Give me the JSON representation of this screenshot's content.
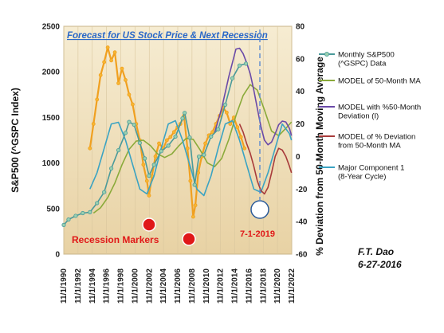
{
  "chart_data": {
    "type": "line",
    "title": "Forecast for US Stock Price & Next Recession",
    "ylabel": "S&P500 (^GSPC Index)",
    "y2label": "% Deviation from 50-Month Moving  Average",
    "ylim": [
      0,
      2500
    ],
    "y2lim": [
      -60,
      80
    ],
    "y_ticks": [
      "0",
      "500",
      "1000",
      "1500",
      "2000",
      "2500"
    ],
    "y2_ticks": [
      "-60",
      "-40",
      "-20",
      "0",
      "20",
      "40",
      "60",
      "80"
    ],
    "x_ticks": [
      "11/1/1990",
      "11/1/1992",
      "11/1/1994",
      "11/1/1996",
      "11/1/1998",
      "11/1/2000",
      "11/1/2002",
      "11/1/2004",
      "11/1/2006",
      "11/1/2008",
      "11/1/2010",
      "11/1/2012",
      "11/1/2014",
      "11/1/2016",
      "11/1/2018",
      "11/1/2020",
      "11/1/2022"
    ],
    "xlim": [
      1990.83,
      2022.83
    ],
    "legend_position": "right",
    "series": [
      {
        "name": "Monthly  S&P500 (^GSPC)  Data",
        "axis": "left",
        "color": "#4a9a9a",
        "x": [
          1990.83,
          1991.5,
          1992.5,
          1993.5,
          1994.5,
          1995.5,
          1996.5,
          1997.5,
          1998.5,
          1999.5,
          2000.0,
          2000.7,
          2001.5,
          2002.2,
          2002.8,
          2003.5,
          2004.5,
          2005.5,
          2006.5,
          2007.5,
          2007.8,
          2008.5,
          2009.2,
          2009.8,
          2010.5,
          2011.5,
          2012.5,
          2013.5,
          2014.5,
          2015.5,
          2016.4
        ],
        "y": [
          320,
          380,
          420,
          450,
          460,
          560,
          680,
          940,
          1140,
          1330,
          1450,
          1420,
          1220,
          1050,
          860,
          980,
          1130,
          1190,
          1290,
          1490,
          1550,
          1280,
          760,
          1070,
          1090,
          1290,
          1370,
          1640,
          1930,
          2070,
          2090
        ]
      },
      {
        "name": "MODEL of  50-Month MA",
        "axis": "left",
        "color": "#8aaa3a",
        "x": [
          1995.0,
          1996.0,
          1997.0,
          1998.0,
          1999.0,
          2000.0,
          2001.0,
          2002.0,
          2003.0,
          2004.0,
          2005.0,
          2006.0,
          2007.0,
          2008.0,
          2009.0,
          2010.0,
          2011.0,
          2012.0,
          2013.0,
          2014.0,
          2015.0,
          2016.0,
          2017.0,
          2018.0,
          2019.0,
          2020.0,
          2021.0,
          2022.0,
          2022.8
        ],
        "y": [
          450,
          510,
          620,
          780,
          980,
          1150,
          1240,
          1250,
          1190,
          1100,
          1060,
          1100,
          1190,
          1270,
          1260,
          1140,
          1000,
          960,
          1050,
          1260,
          1520,
          1740,
          1860,
          1800,
          1580,
          1350,
          1300,
          1380,
          1450
        ]
      },
      {
        "name": "MODEL with %50-Month Deviation (I)",
        "axis": "left",
        "color": "#6a4aa8",
        "x": [
          2012.0,
          2013.0,
          2014.0,
          2015.0,
          2015.5,
          2016.0,
          2016.5,
          2017.0,
          2017.5,
          2018.0,
          2018.5,
          2019.0,
          2019.5,
          2020.0,
          2020.5,
          2021.0,
          2021.5,
          2022.0,
          2022.5,
          2022.8
        ],
        "y": [
          1330,
          1600,
          1950,
          2250,
          2260,
          2200,
          2100,
          1980,
          1800,
          1600,
          1400,
          1250,
          1200,
          1230,
          1320,
          1420,
          1460,
          1450,
          1380,
          1300
        ]
      },
      {
        "name": "MODEL of  % Deviation from 50-Month MA",
        "axis": "right",
        "color": "#a83a3a",
        "x": [
          2015.5,
          2016.0,
          2016.5,
          2017.0,
          2017.5,
          2018.0,
          2018.5,
          2019.0,
          2019.5,
          2020.0,
          2020.5,
          2021.0,
          2021.5,
          2022.0,
          2022.5,
          2022.8
        ],
        "y": [
          20,
          15,
          8,
          2,
          -6,
          -15,
          -21,
          -23,
          -19,
          -10,
          0,
          5,
          4,
          0,
          -6,
          -10
        ]
      },
      {
        "name": "Major Component 1 (8-Year Cycle)",
        "axis": "right",
        "color": "#3aa3c3",
        "x": [
          1994.5,
          1995.5,
          1996.5,
          1997.5,
          1998.5,
          1999.5,
          2000.5,
          2001.5,
          2002.5,
          2003.5,
          2004.5,
          2005.5,
          2006.5,
          2007.5,
          2008.5,
          2009.5,
          2010.5,
          2011.5,
          2012.5,
          2013.5,
          2014.5,
          2015.5,
          2016.5,
          2017.5,
          2018.5,
          2019.5,
          2020.5,
          2021.5,
          2022.5,
          2022.8
        ],
        "y": [
          -20,
          -10,
          5,
          20,
          21,
          10,
          -5,
          -20,
          -23,
          -12,
          5,
          20,
          22,
          10,
          -5,
          -20,
          -24,
          -12,
          5,
          20,
          22,
          10,
          -5,
          -20,
          -22,
          -10,
          5,
          20,
          14,
          10
        ]
      },
      {
        "name": "% Deviation data",
        "axis": "right",
        "color": "#f0a020",
        "legend": false,
        "x": [
          1994.5,
          1995.0,
          1995.5,
          1996.0,
          1996.5,
          1997.0,
          1997.5,
          1998.0,
          1998.5,
          1999.0,
          1999.5,
          2000.0,
          2000.5,
          2001.0,
          2001.5,
          2002.0,
          2002.5,
          2002.8,
          2003.2,
          2003.7,
          2004.2,
          2004.8,
          2005.3,
          2005.8,
          2006.3,
          2006.8,
          2007.2,
          2007.7,
          2008.2,
          2008.6,
          2009.0,
          2009.3,
          2009.7,
          2010.2,
          2010.7,
          2011.2,
          2011.7,
          2012.2,
          2012.7,
          2013.2,
          2013.7,
          2014.2,
          2014.7,
          2015.2,
          2015.7,
          2016.2
        ],
        "y": [
          5,
          20,
          35,
          50,
          58,
          67,
          59,
          64,
          45,
          54,
          47,
          38,
          32,
          20,
          10,
          -5,
          -15,
          -24,
          -12,
          0,
          8,
          5,
          10,
          12,
          15,
          18,
          20,
          25,
          5,
          -15,
          -37,
          -30,
          -10,
          0,
          8,
          13,
          15,
          20,
          25,
          30,
          27,
          20,
          24,
          18,
          12,
          5
        ]
      }
    ],
    "annotations": {
      "recession_markers": "Recession Markers",
      "date": "7-1-2019",
      "author": "F.T. Dao",
      "author_date": "6-27-2016"
    }
  }
}
